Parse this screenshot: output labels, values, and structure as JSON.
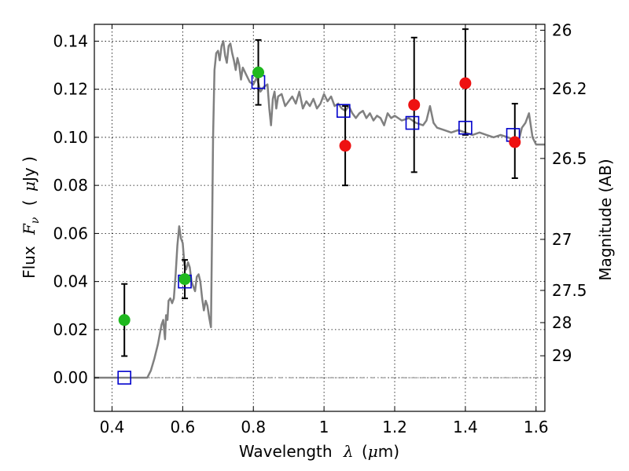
{
  "chart_data": {
    "type": "scatter",
    "title": "",
    "xlabel_text": "Wavelength",
    "xlabel_symbol": "λ",
    "xlabel_unit_open": "(",
    "xlabel_unit_mu": "μ",
    "xlabel_unit_rest": "m)",
    "ylabel_text": "Flux",
    "ylabel_symbol": "F",
    "ylabel_sub": "ν",
    "ylabel_unit_open": "(",
    "ylabel_unit_mu": "μ",
    "ylabel_unit_rest": "Jy )",
    "y2label": "Magnitude (AB)",
    "xlim": [
      0.35,
      1.625
    ],
    "ylim": [
      -0.014,
      0.147
    ],
    "grid": true,
    "x_ticks": [
      {
        "value": 0.4,
        "label": "0.4"
      },
      {
        "value": 0.6,
        "label": "0.6"
      },
      {
        "value": 0.8,
        "label": "0.8"
      },
      {
        "value": 1.0,
        "label": "1"
      },
      {
        "value": 1.2,
        "label": "1.2"
      },
      {
        "value": 1.4,
        "label": "1.4"
      },
      {
        "value": 1.6,
        "label": "1.6"
      }
    ],
    "y_ticks": [
      {
        "value": 0.0,
        "label": "0.00"
      },
      {
        "value": 0.02,
        "label": "0.02"
      },
      {
        "value": 0.04,
        "label": "0.04"
      },
      {
        "value": 0.06,
        "label": "0.06"
      },
      {
        "value": 0.08,
        "label": "0.08"
      },
      {
        "value": 0.1,
        "label": "0.10"
      },
      {
        "value": 0.12,
        "label": "0.12"
      },
      {
        "value": 0.14,
        "label": "0.14"
      }
    ],
    "y2_ticks": [
      {
        "mag": 26,
        "label": "26"
      },
      {
        "mag": 26.2,
        "label": "26.2"
      },
      {
        "mag": 26.5,
        "label": "26.5"
      },
      {
        "mag": 27,
        "label": "27"
      },
      {
        "mag": 27.5,
        "label": "27.5"
      },
      {
        "mag": 28,
        "label": "28"
      },
      {
        "mag": 29,
        "label": "29"
      }
    ],
    "colors": {
      "model": "#808080",
      "detection": "#1fb81f",
      "nondetect": "#ee1111",
      "model_box": "#0000cc",
      "error_bar": "#000000"
    },
    "model_spectrum": {
      "name": "",
      "x": [
        0.35,
        0.5,
        0.51,
        0.52,
        0.53,
        0.54,
        0.545,
        0.55,
        0.553,
        0.557,
        0.56,
        0.565,
        0.57,
        0.575,
        0.58,
        0.585,
        0.59,
        0.595,
        0.6,
        0.605,
        0.61,
        0.615,
        0.62,
        0.625,
        0.63,
        0.635,
        0.64,
        0.645,
        0.65,
        0.655,
        0.66,
        0.665,
        0.67,
        0.675,
        0.68,
        0.683,
        0.686,
        0.69,
        0.695,
        0.7,
        0.705,
        0.71,
        0.715,
        0.72,
        0.725,
        0.73,
        0.735,
        0.74,
        0.745,
        0.75,
        0.755,
        0.76,
        0.765,
        0.77,
        0.78,
        0.79,
        0.8,
        0.81,
        0.82,
        0.83,
        0.84,
        0.845,
        0.85,
        0.855,
        0.86,
        0.865,
        0.87,
        0.88,
        0.89,
        0.9,
        0.91,
        0.92,
        0.93,
        0.94,
        0.95,
        0.96,
        0.97,
        0.98,
        0.99,
        1.0,
        1.01,
        1.02,
        1.03,
        1.04,
        1.05,
        1.06,
        1.07,
        1.08,
        1.09,
        1.1,
        1.11,
        1.12,
        1.13,
        1.14,
        1.15,
        1.16,
        1.17,
        1.18,
        1.19,
        1.2,
        1.22,
        1.24,
        1.26,
        1.28,
        1.29,
        1.3,
        1.31,
        1.32,
        1.34,
        1.36,
        1.38,
        1.4,
        1.42,
        1.44,
        1.46,
        1.48,
        1.5,
        1.52,
        1.54,
        1.55,
        1.56,
        1.57,
        1.58,
        1.59,
        1.6,
        1.625
      ],
      "y": [
        0.0,
        0.0,
        0.003,
        0.008,
        0.014,
        0.022,
        0.024,
        0.016,
        0.026,
        0.024,
        0.032,
        0.033,
        0.031,
        0.033,
        0.043,
        0.055,
        0.063,
        0.058,
        0.056,
        0.047,
        0.045,
        0.048,
        0.046,
        0.04,
        0.038,
        0.036,
        0.042,
        0.043,
        0.04,
        0.033,
        0.028,
        0.032,
        0.03,
        0.025,
        0.021,
        0.06,
        0.1,
        0.128,
        0.135,
        0.136,
        0.132,
        0.138,
        0.14,
        0.134,
        0.131,
        0.138,
        0.139,
        0.135,
        0.132,
        0.128,
        0.133,
        0.13,
        0.124,
        0.129,
        0.126,
        0.123,
        0.122,
        0.125,
        0.119,
        0.121,
        0.122,
        0.112,
        0.105,
        0.116,
        0.119,
        0.112,
        0.117,
        0.118,
        0.113,
        0.115,
        0.117,
        0.114,
        0.119,
        0.112,
        0.115,
        0.113,
        0.116,
        0.112,
        0.114,
        0.118,
        0.115,
        0.117,
        0.113,
        0.114,
        0.112,
        0.111,
        0.113,
        0.11,
        0.108,
        0.11,
        0.111,
        0.108,
        0.11,
        0.107,
        0.109,
        0.108,
        0.105,
        0.11,
        0.108,
        0.109,
        0.107,
        0.108,
        0.106,
        0.105,
        0.107,
        0.113,
        0.106,
        0.104,
        0.103,
        0.102,
        0.103,
        0.102,
        0.101,
        0.102,
        0.101,
        0.1,
        0.101,
        0.1,
        0.099,
        0.098,
        0.104,
        0.106,
        0.11,
        0.1,
        0.097,
        0.097
      ]
    },
    "model_photometry": {
      "x": [
        0.435,
        0.606,
        0.814,
        1.055,
        1.25,
        1.4,
        1.535
      ],
      "y": [
        0.0,
        0.04,
        0.123,
        0.111,
        0.106,
        0.104,
        0.101
      ]
    },
    "observed_detections": {
      "x": [
        0.435,
        0.606,
        0.814
      ],
      "y": [
        0.024,
        0.041,
        0.127
      ],
      "yerr": [
        0.015,
        0.008,
        0.0135
      ]
    },
    "observed_nondetections": {
      "x": [
        1.06,
        1.255,
        1.4,
        1.54
      ],
      "y": [
        0.0965,
        0.1135,
        0.1225,
        0.098
      ],
      "yerr_low": [
        0.0165,
        0.028,
        0.0215,
        0.015
      ],
      "yerr_high": [
        0.0165,
        0.028,
        0.0225,
        0.016
      ]
    }
  }
}
